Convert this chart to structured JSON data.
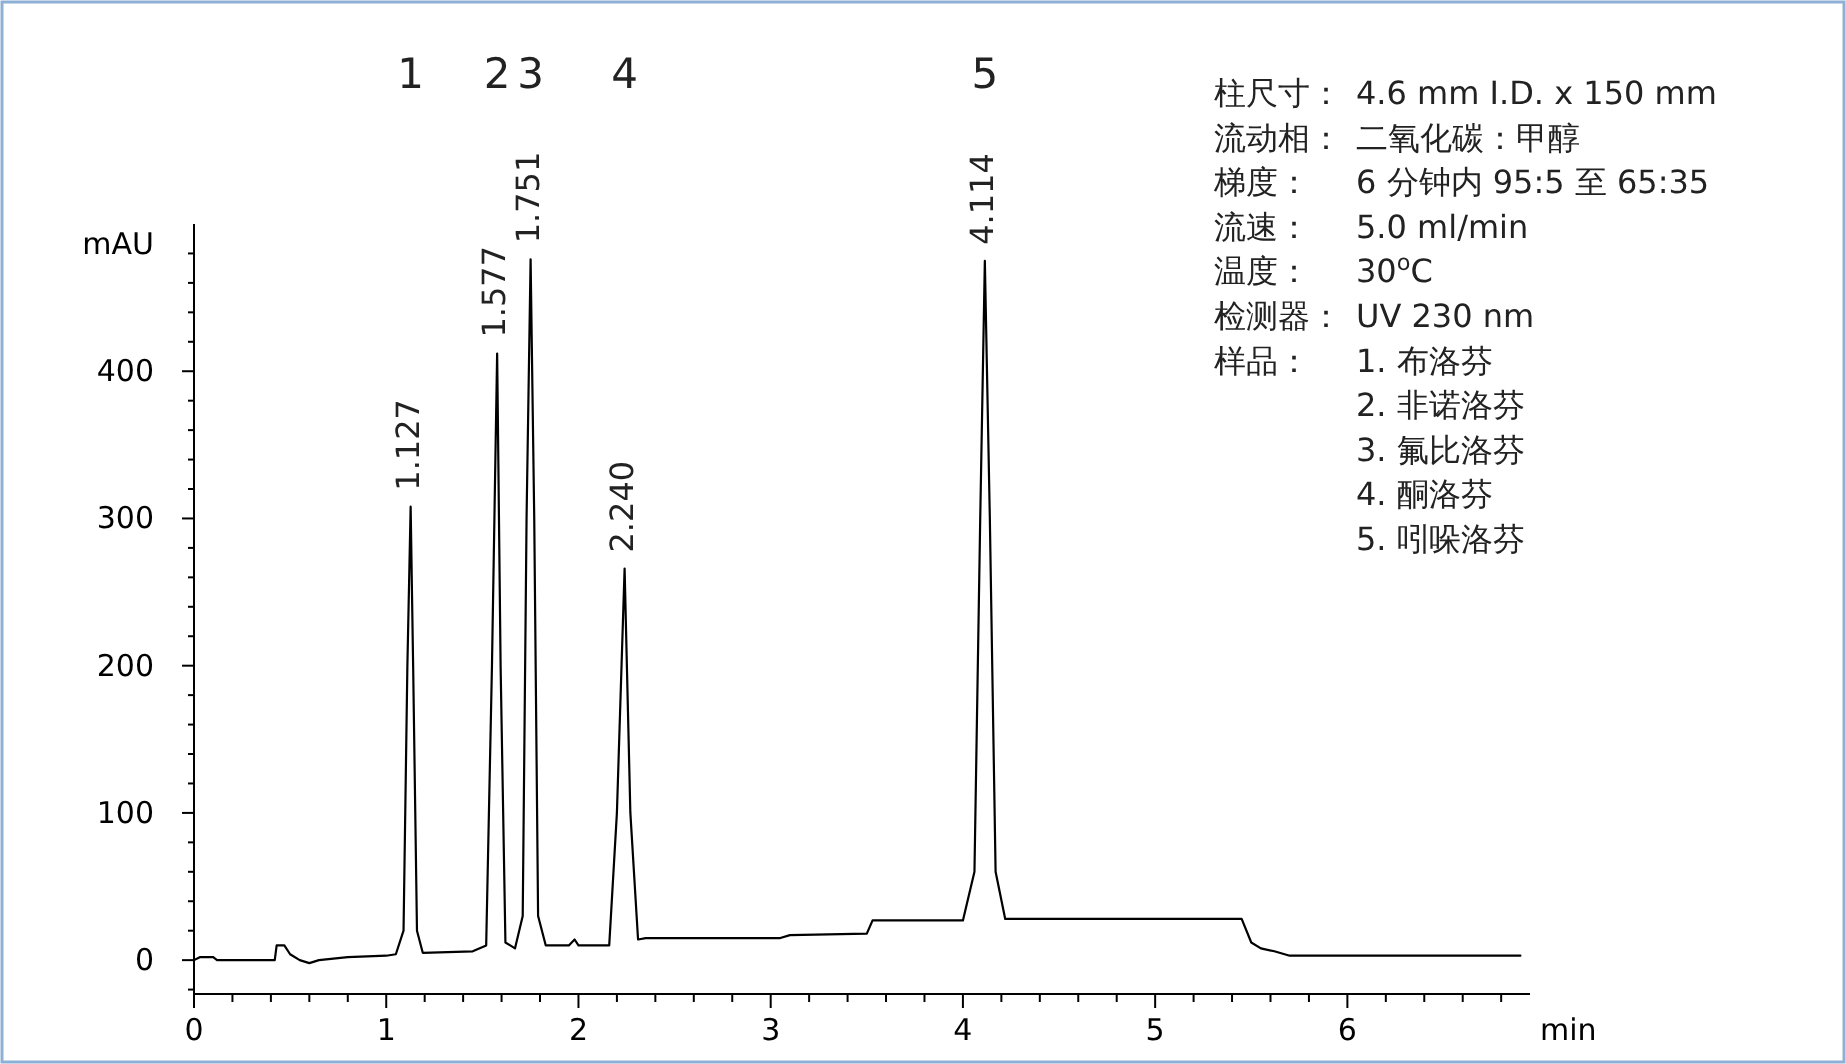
{
  "chart_data": {
    "type": "line",
    "xlabel": "min",
    "ylabel": "mAU",
    "xlim": [
      0,
      6.95
    ],
    "ylim": [
      -23,
      500
    ],
    "xticks": [
      0,
      {
        "value": 0.2,
        "label": null
      },
      {
        "value": 0.4,
        "label": null
      },
      {
        "value": 0.6,
        "label": null
      },
      {
        "value": 0.8,
        "label": null
      },
      1,
      {
        "value": 1.2,
        "label": null
      },
      {
        "value": 1.4,
        "label": null
      },
      {
        "value": 1.6,
        "label": null
      },
      {
        "value": 1.8,
        "label": null
      },
      2,
      {
        "value": 2.2,
        "label": null
      },
      {
        "value": 2.4,
        "label": null
      },
      {
        "value": 2.6,
        "label": null
      },
      {
        "value": 2.8,
        "label": null
      },
      3,
      {
        "value": 3.2,
        "label": null
      },
      {
        "value": 3.4,
        "label": null
      },
      {
        "value": 3.6,
        "label": null
      },
      {
        "value": 3.8,
        "label": null
      },
      4,
      {
        "value": 4.2,
        "label": null
      },
      {
        "value": 4.4,
        "label": null
      },
      {
        "value": 4.6,
        "label": null
      },
      {
        "value": 4.8,
        "label": null
      },
      5,
      {
        "value": 5.2,
        "label": null
      },
      {
        "value": 5.4,
        "label": null
      },
      {
        "value": 5.6,
        "label": null
      },
      {
        "value": 5.8,
        "label": null
      },
      6,
      {
        "value": 6.2,
        "label": null
      },
      {
        "value": 6.4,
        "label": null
      },
      {
        "value": 6.6,
        "label": null
      },
      {
        "value": 6.8,
        "label": null
      }
    ],
    "yticks": [
      {
        "value": -20,
        "label": null
      },
      0,
      {
        "value": 20,
        "label": null
      },
      {
        "value": 40,
        "label": null
      },
      {
        "value": 60,
        "label": null
      },
      {
        "value": 80,
        "label": null
      },
      100,
      {
        "value": 120,
        "label": null
      },
      {
        "value": 140,
        "label": null
      },
      {
        "value": 160,
        "label": null
      },
      {
        "value": 180,
        "label": null
      },
      200,
      {
        "value": 220,
        "label": null
      },
      {
        "value": 240,
        "label": null
      },
      {
        "value": 260,
        "label": null
      },
      {
        "value": 280,
        "label": null
      },
      300,
      {
        "value": 320,
        "label": null
      },
      {
        "value": 340,
        "label": null
      },
      {
        "value": 360,
        "label": null
      },
      {
        "value": 380,
        "label": null
      },
      400,
      {
        "value": 420,
        "label": null
      },
      {
        "value": 440,
        "label": null
      },
      {
        "value": 460,
        "label": null
      },
      {
        "value": 480,
        "label": null
      }
    ],
    "grid": false,
    "marker": "none",
    "line_style": "solid",
    "series": [
      {
        "color": "#000000",
        "x": [
          0,
          0.03,
          0.1,
          0.12,
          0.42,
          0.43,
          0.47,
          0.5,
          0.55,
          0.6,
          0.65,
          0.8,
          1.0,
          1.05,
          1.09,
          1.11,
          1.127,
          1.14,
          1.16,
          1.19,
          1.45,
          1.52,
          1.55,
          1.577,
          1.595,
          1.62,
          1.67,
          1.71,
          1.73,
          1.751,
          1.77,
          1.79,
          1.83,
          1.95,
          1.98,
          2.0,
          2.16,
          2.2,
          2.24,
          2.27,
          2.31,
          2.35,
          3.05,
          3.1,
          3.5,
          3.53,
          4.0,
          4.06,
          4.09,
          4.114,
          4.14,
          4.17,
          4.22,
          5.45,
          5.5,
          5.55,
          5.62,
          5.7,
          6.9
        ],
        "values": [
          0,
          2,
          2,
          0,
          0,
          10,
          10,
          4,
          0,
          -2,
          0,
          2,
          3,
          4,
          20,
          200,
          308,
          200,
          20,
          5,
          6,
          10,
          200,
          412,
          200,
          12,
          8,
          30,
          300,
          476,
          300,
          30,
          10,
          10,
          14,
          10,
          10,
          100,
          266,
          100,
          14,
          15,
          15,
          17,
          18,
          27,
          27,
          60,
          300,
          475,
          300,
          60,
          28,
          28,
          12,
          8,
          6,
          3,
          3
        ]
      }
    ],
    "annotations": [
      {
        "text": "1.127",
        "x": 1.127,
        "y": 308
      },
      {
        "text": "1.577",
        "x": 1.577,
        "y": 412
      },
      {
        "text": "1.751",
        "x": 1.751,
        "y": 476
      },
      {
        "text": "2.240",
        "x": 2.24,
        "y": 266
      },
      {
        "text": "4.114",
        "x": 4.114,
        "y": 475
      },
      "1",
      "2",
      "3",
      "4",
      "5",
      "柱尺寸： 4.6 mm I.D. x 150 mm",
      "流动相：二氧化碳：甲醇",
      "梯度： 6 分钟内 95:5 至 65:35",
      "流速： 5.0 ml/min",
      "温度： 30$^{o}$C",
      "检测器： UV 230 nm",
      "样品： 1. 布洛芬",
      "2. 非诺洛芬",
      "3. 氟比洛芬",
      "4. 酮洛芬",
      "5. 吲哚洛芬"
    ]
  }
}
